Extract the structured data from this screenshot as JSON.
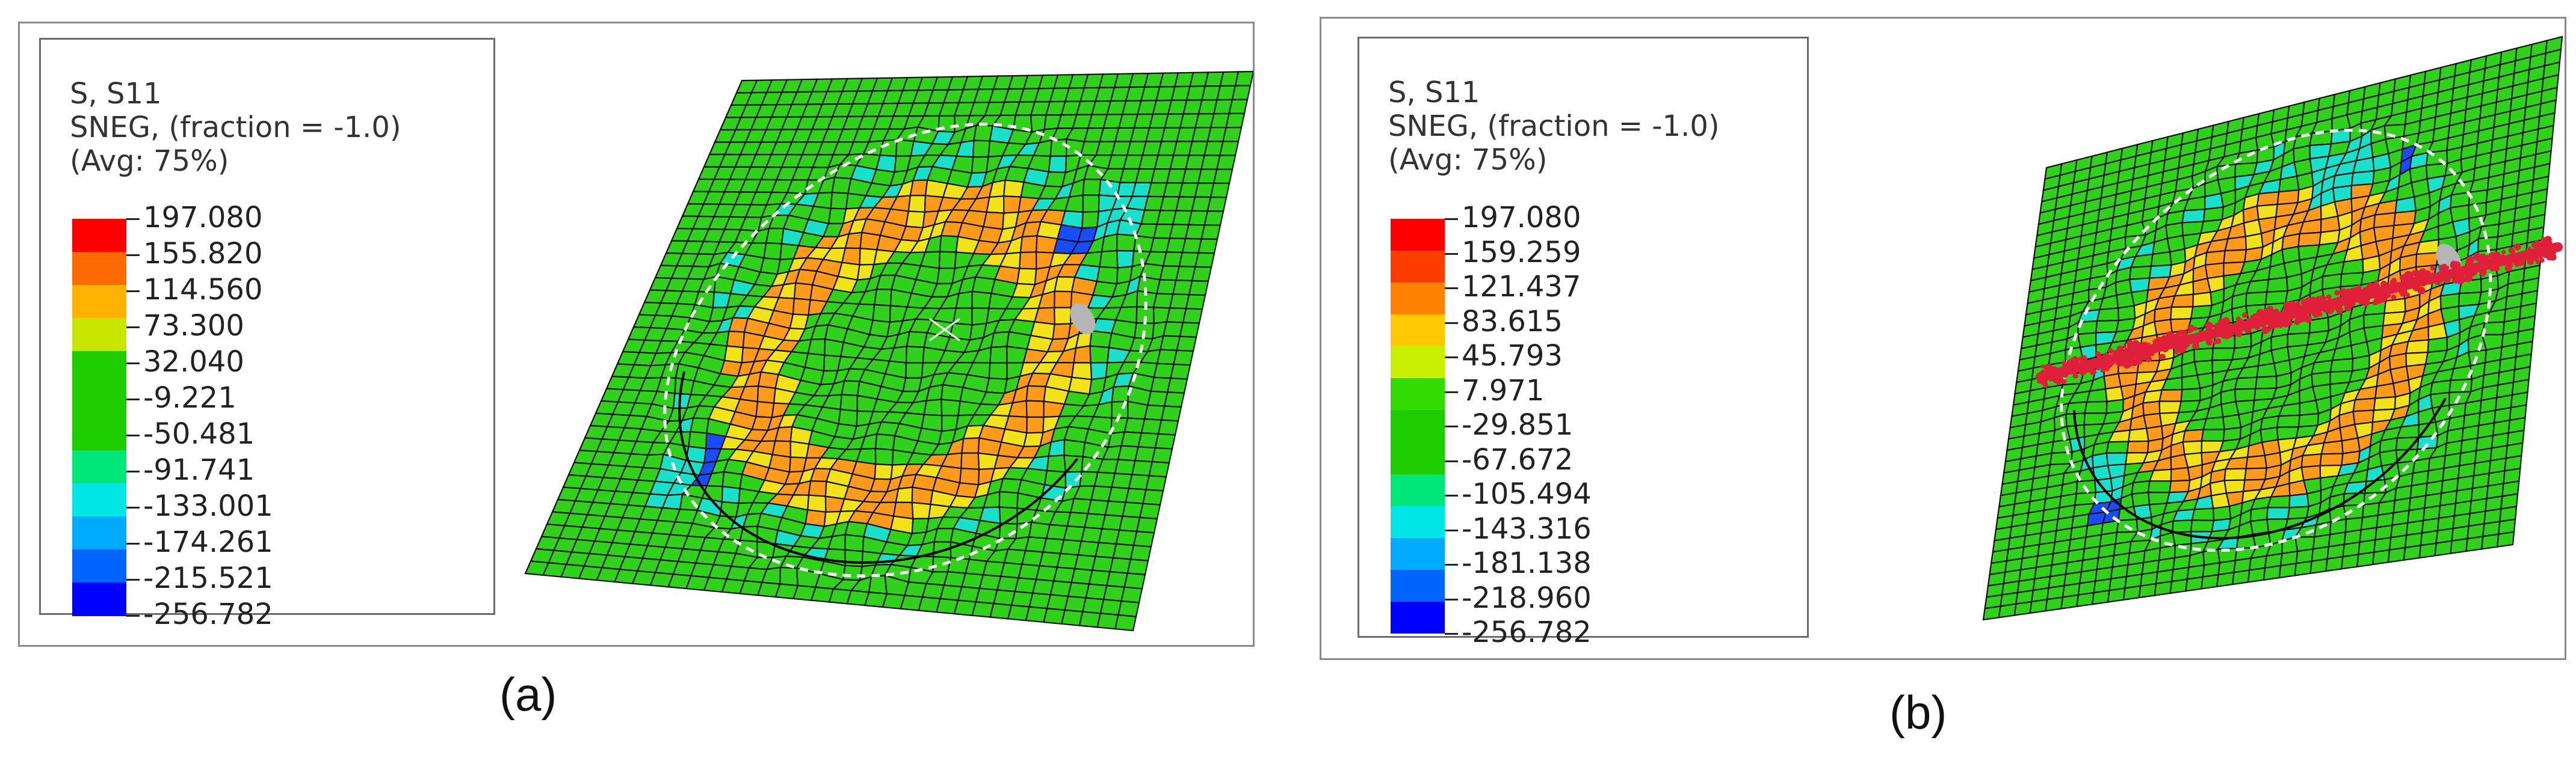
{
  "panels": [
    {
      "caption": "(a)",
      "legend": {
        "line1": "S, S11",
        "line2": "SNEG, (fraction = -1.0)",
        "line3": "(Avg: 75%)",
        "ticks": [
          "197.080",
          "155.820",
          "114.560",
          "73.300",
          "32.040",
          "-9.221",
          "-50.481",
          "-91.741",
          "-133.001",
          "-174.261",
          "-215.521",
          "-256.782"
        ],
        "colors": [
          "#ff0000",
          "#ff6a00",
          "#ffb300",
          "#c8e600",
          "#1fcc00",
          "#1fcc00",
          "#1fcc00",
          "#00e678",
          "#00e6e6",
          "#00aaff",
          "#0064ff",
          "#0000ff"
        ]
      }
    },
    {
      "caption": "(b)",
      "legend": {
        "line1": "S, S11",
        "line2": "SNEG, (fraction = -1.0)",
        "line3": "(Avg: 75%)",
        "ticks": [
          "197.080",
          "159.259",
          "121.437",
          "83.615",
          "45.793",
          "7.971",
          "-29.851",
          "-67.672",
          "-105.494",
          "-143.316",
          "-181.138",
          "-218.960",
          "-256.782"
        ],
        "colors": [
          "#ff0000",
          "#ff3c00",
          "#ff8200",
          "#ffc800",
          "#c8f000",
          "#32dc00",
          "#1fcc00",
          "#1fcc00",
          "#00e678",
          "#00e6e6",
          "#00aaff",
          "#0064ff",
          "#0000ff"
        ]
      }
    }
  ],
  "mesh_colors": {
    "base": "#2fd11a",
    "ring_yellow": "#f2e21a",
    "ring_orange": "#ff9a1a",
    "cyan": "#19e0c8",
    "blue": "#1a4cff",
    "crack_red": "#e0203a",
    "tool_gray": "#b5b5b5",
    "grid_line": "#111111"
  }
}
